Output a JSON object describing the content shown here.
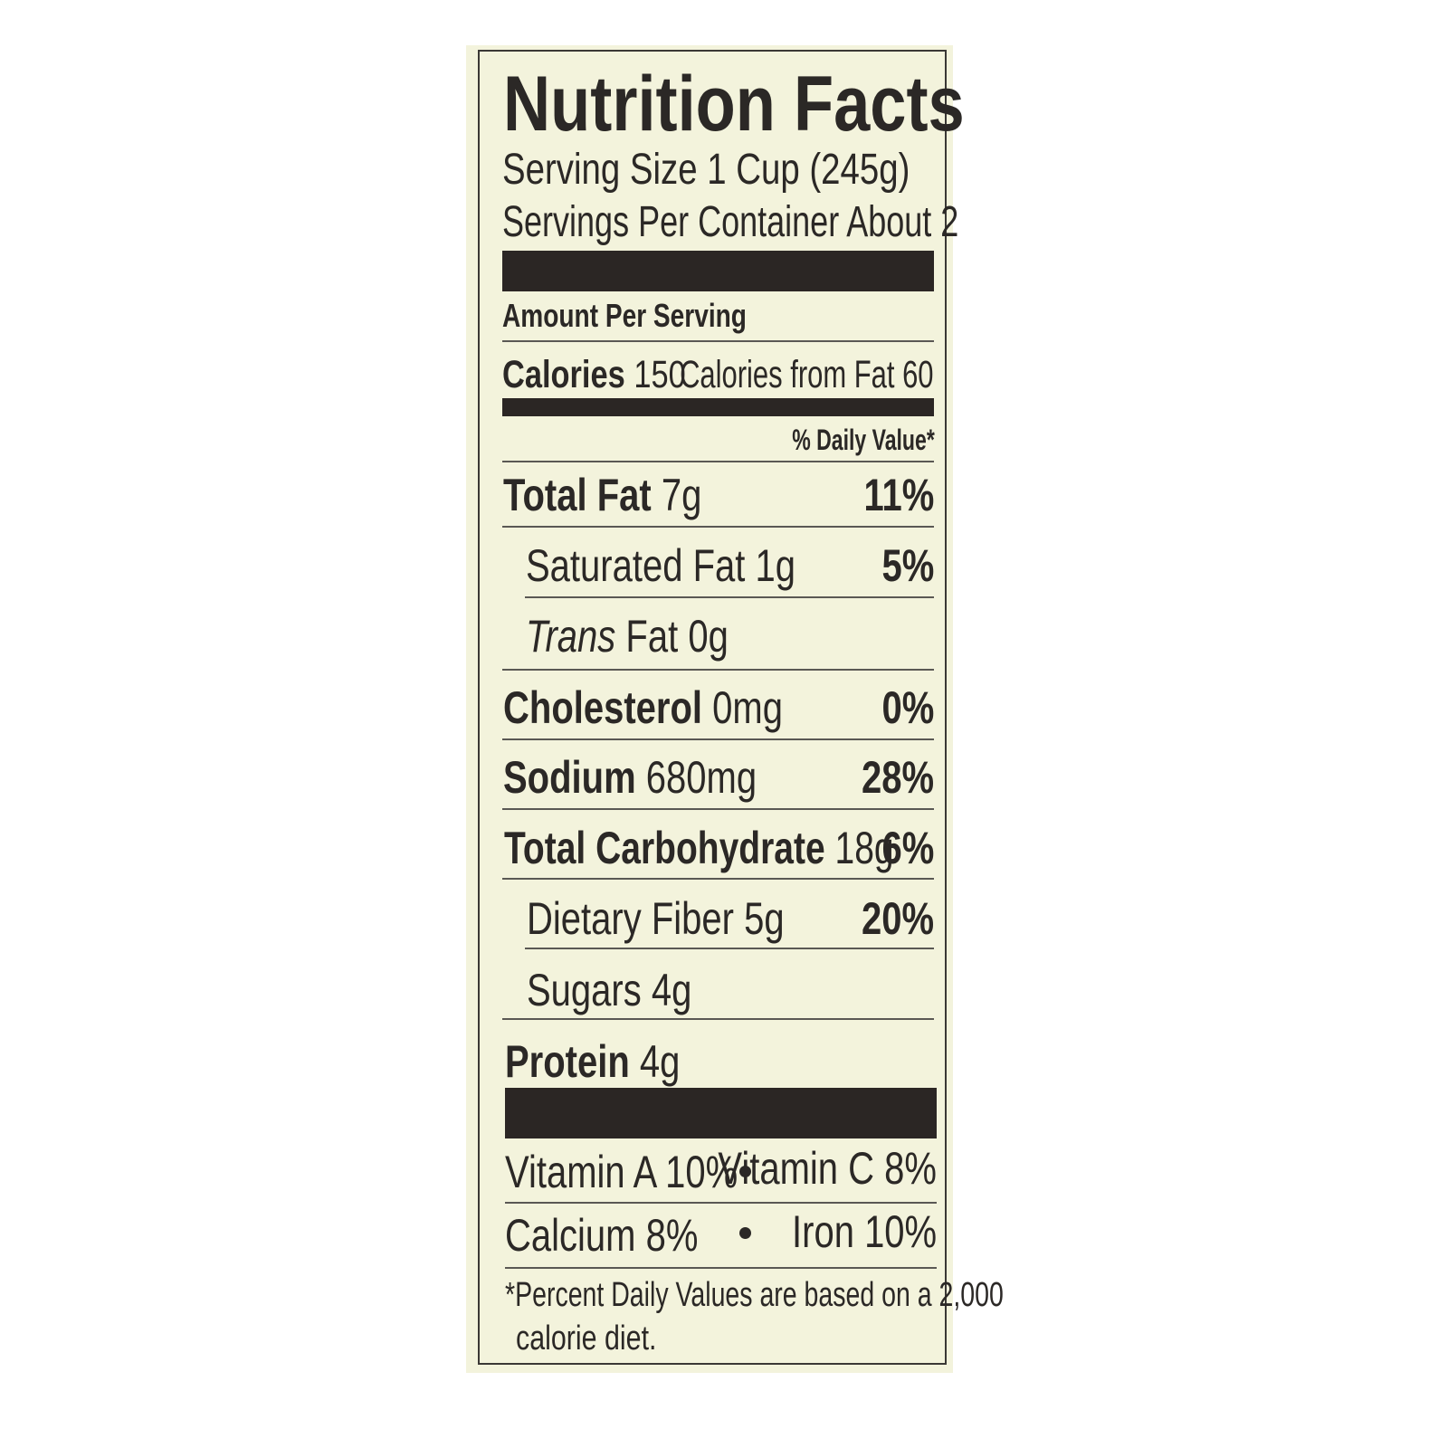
{
  "title": "Nutrition Facts",
  "serving_size": "Serving Size 1 Cup (245g)",
  "servings_per_container": "Servings Per Container About 2",
  "amount_per_serving": "Amount Per Serving",
  "calories": {
    "label": "Calories",
    "value": "150",
    "from_fat": "Calories from Fat 60"
  },
  "daily_value_header": "% Daily Value*",
  "nutrients": [
    {
      "label": "Total Fat",
      "amount": "7g",
      "dv": "11%"
    },
    {
      "label": "Saturated Fat",
      "amount": "1g",
      "dv": "5%"
    },
    {
      "label": "Trans",
      "label2": "Fat",
      "amount": "0g"
    },
    {
      "label": "Cholesterol",
      "amount": "0mg",
      "dv": "0%"
    },
    {
      "label": "Sodium",
      "amount": "680mg",
      "dv": "28%"
    },
    {
      "label": "Total Carbohydrate",
      "amount": "18g",
      "dv": "6%"
    },
    {
      "label": "Dietary Fiber",
      "amount": "5g",
      "dv": "20%"
    },
    {
      "label": "Sugars",
      "amount": "4g"
    },
    {
      "label": "Protein",
      "amount": "4g"
    }
  ],
  "vitamins": {
    "vitamin_a": "Vitamin A 10%",
    "vitamin_c": "Vitamin C 8%",
    "calcium": "Calcium 8%",
    "iron": "Iron 10%"
  },
  "footnote": {
    "line1": "*Percent Daily Values are based on a 2,000",
    "line2": "calorie diet."
  },
  "colors": {
    "label_background": "#f3f3dc",
    "ink": "#2b2826"
  }
}
